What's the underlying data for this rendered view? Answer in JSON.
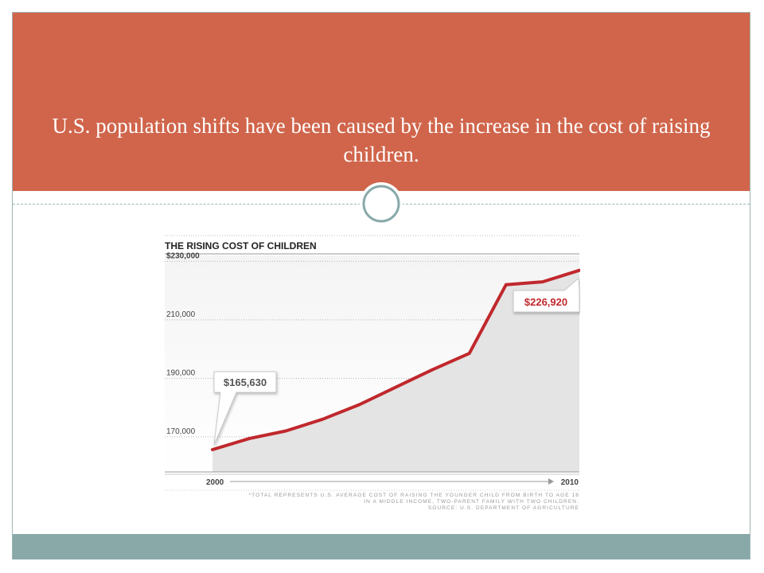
{
  "slide": {
    "title": "U.S. population shifts have been caused by the increase in the cost of raising children.",
    "colors": {
      "header": "#d0654b",
      "footer": "#89a9a9",
      "frame": "#9fb4b4",
      "ornament": "#89a9a9"
    }
  },
  "chart_data": {
    "type": "line",
    "title": "THE RISING COST OF CHILDREN",
    "x": [
      2000,
      2001,
      2002,
      2003,
      2004,
      2005,
      2006,
      2007,
      2008,
      2009,
      2010
    ],
    "series": [
      {
        "values": [
          165630,
          169400,
          172000,
          176000,
          181000,
          187000,
          193000,
          198500,
          222000,
          223000,
          226920
        ]
      }
    ],
    "ylim": [
      158000,
      232000
    ],
    "yticks": [
      230000,
      210000,
      190000,
      170000
    ],
    "ytick_labels": [
      "$230,000",
      "210,000",
      "190,000",
      "170,000"
    ],
    "x_start_label": "2000",
    "x_end_label": "2010",
    "callouts": [
      {
        "label": "$165,630",
        "x": 2000,
        "y": 165630
      },
      {
        "label": "$226,920",
        "x": 2010,
        "y": 226920
      }
    ],
    "footnote": [
      "*TOTAL REPRESENTS U.S. AVERAGE COST OF RAISING THE YOUNGER CHILD FROM BIRTH TO AGE 18",
      "IN A MIDDLE INCOME, TWO-PARENT FAMILY WITH TWO CHILDREN.",
      "SOURCE: U.S. DEPARTMENT OF AGRICULTURE"
    ],
    "line_color": "#c0282d",
    "area_color": "#e4e4e4",
    "grid": true
  }
}
